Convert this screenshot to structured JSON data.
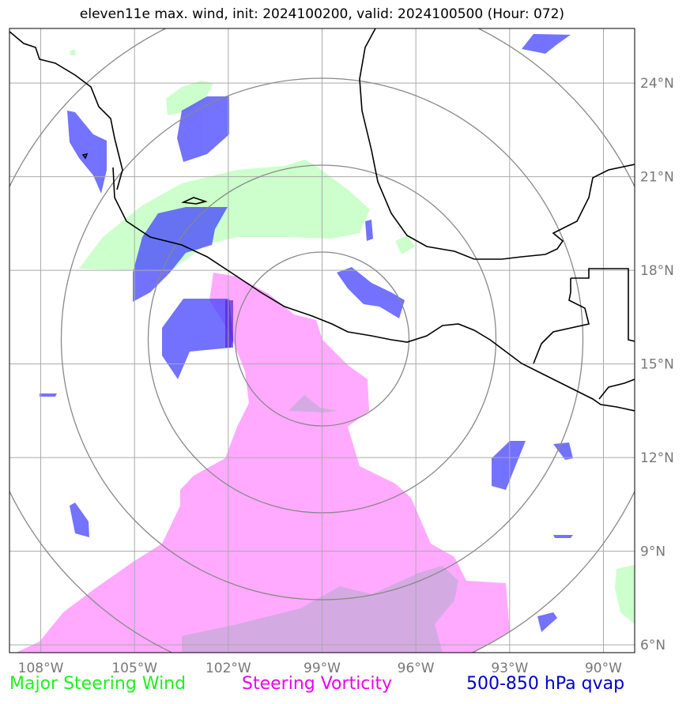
{
  "title": "eleven11e max. wind, init: 2024100200, valid: 2024100500 (Hour: 072)",
  "legend": [
    {
      "label": "Major Steering Wind",
      "color": "#22ee22"
    },
    {
      "label": "Steering Vorticity",
      "color": "#ee00ee"
    },
    {
      "label": "500-850 hPa qvap",
      "color": "#0000cc"
    }
  ],
  "map": {
    "lon_ticks": [
      "108°W",
      "105°W",
      "102°W",
      "99°W",
      "96°W",
      "93°W",
      "90°W"
    ],
    "lat_ticks": [
      "24°N",
      "21°N",
      "18°N",
      "15°N",
      "12°N",
      "9°N",
      "6°N"
    ],
    "lon_range": [
      -109,
      -89
    ],
    "lat_range": [
      5.75,
      25.75
    ],
    "storm_center": {
      "lon": -99,
      "lat": 15.8
    },
    "range_rings": 4,
    "colors": {
      "wind": "#ccffcc",
      "vorticity": "#ffaaff",
      "qvap": "#4444ff",
      "grid": "#aaaaaa",
      "rings": "#888888",
      "coast": "#000000"
    }
  }
}
